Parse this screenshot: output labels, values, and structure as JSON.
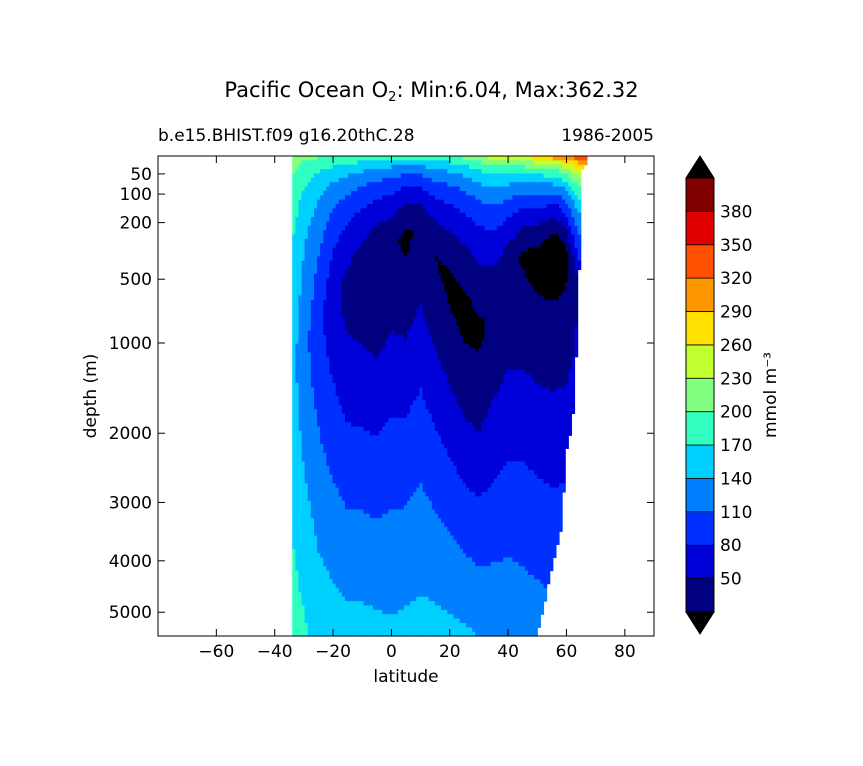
{
  "title_prefix": "Pacific Ocean O",
  "title_sub": "2",
  "title_suffix": ": Min:6.04, Max:362.32",
  "subtitle_left": "b.e15.BHIST.f09 g16.20thC.28",
  "subtitle_right": "1986-2005",
  "chart_data": {
    "type": "heatmap",
    "title": "Pacific Ocean O2: Min:6.04, Max:362.32",
    "min": 6.04,
    "max": 362.32,
    "xlabel": "latitude",
    "ylabel": "depth (m)",
    "xlim": [
      -80,
      90
    ],
    "ylim": [
      5500,
      20
    ],
    "yscale": "sqrt",
    "xticks": [
      -60,
      -40,
      -20,
      0,
      20,
      40,
      60,
      80
    ],
    "xtick_labels": [
      "−60",
      "−40",
      "−20",
      "0",
      "20",
      "40",
      "60",
      "80"
    ],
    "yticks": [
      50,
      100,
      200,
      500,
      1000,
      2000,
      3000,
      4000,
      5000
    ],
    "ytick_labels": [
      "50",
      "100",
      "200",
      "500",
      "1000",
      "2000",
      "3000",
      "4000",
      "5000"
    ],
    "colorbar": {
      "label": "mmol m⁻³",
      "levels": [
        20,
        50,
        80,
        110,
        140,
        170,
        200,
        230,
        260,
        290,
        320,
        350,
        380,
        410
      ],
      "tick_labels": [
        "50",
        "80",
        "110",
        "140",
        "170",
        "200",
        "230",
        "260",
        "290",
        "320",
        "350",
        "380"
      ],
      "extend": "both",
      "colors": [
        "#000080",
        "#0000d8",
        "#0030ff",
        "#0080ff",
        "#00d0ff",
        "#30ffc0",
        "#80ff80",
        "#c0ff30",
        "#ffe000",
        "#ff9800",
        "#ff5000",
        "#e00000",
        "#800000"
      ],
      "under_color": "#000000",
      "over_color": "#000000"
    },
    "profiles": {
      "latitudes": [
        -34,
        -30,
        -25,
        -20,
        -15,
        -10,
        -5,
        0,
        5,
        10,
        15,
        20,
        25,
        30,
        35,
        40,
        45,
        50,
        55,
        58,
        60,
        62,
        65,
        67
      ],
      "depths": [
        20,
        50,
        75,
        100,
        150,
        200,
        300,
        400,
        500,
        700,
        1000,
        1500,
        2000,
        3000,
        4000,
        5000,
        5500
      ],
      "bottom_depth_m": [
        5500,
        5500,
        5500,
        5500,
        5500,
        5500,
        5500,
        5500,
        5500,
        5500,
        5500,
        5500,
        5500,
        5500,
        5500,
        5500,
        5500,
        5500,
        4100,
        3500,
        2200,
        1900,
        45,
        30
      ],
      "surface_o2": [
        230,
        215,
        210,
        210,
        208,
        205,
        200,
        195,
        195,
        200,
        205,
        210,
        220,
        240,
        255,
        265,
        280,
        295,
        320,
        335,
        345,
        350,
        355,
        360
      ],
      "min_depth_m": [
        1200,
        1000,
        800,
        600,
        550,
        450,
        400,
        300,
        250,
        200,
        350,
        500,
        700,
        850,
        700,
        450,
        350,
        350,
        300,
        300,
        350,
        450,
        600,
        800
      ],
      "min_o2": [
        150,
        120,
        90,
        60,
        40,
        30,
        20,
        25,
        15,
        25,
        20,
        15,
        12,
        15,
        25,
        25,
        18,
        12,
        6,
        8,
        15,
        30,
        60,
        80
      ],
      "bottom_o2": [
        185,
        175,
        160,
        155,
        150,
        150,
        148,
        145,
        148,
        150,
        150,
        148,
        145,
        140,
        135,
        132,
        128,
        125,
        120,
        120,
        120,
        125,
        140,
        150
      ]
    }
  }
}
